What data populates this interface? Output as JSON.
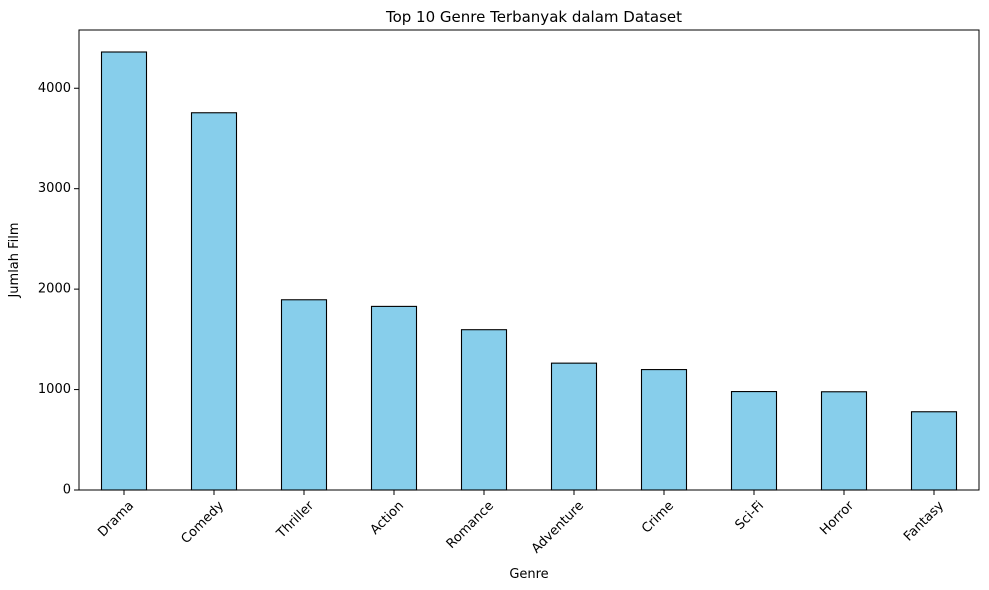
{
  "chart_data": {
    "type": "bar",
    "title": "Top 10 Genre Terbanyak dalam Dataset",
    "xlabel": "Genre",
    "ylabel": "Jumlah Film",
    "categories": [
      "Drama",
      "Comedy",
      "Thriller",
      "Action",
      "Romance",
      "Adventure",
      "Crime",
      "Sci-Fi",
      "Horror",
      "Fantasy"
    ],
    "values": [
      4361,
      3756,
      1894,
      1828,
      1596,
      1263,
      1199,
      980,
      978,
      779
    ],
    "ylim": [
      0,
      4580
    ],
    "yticks": [
      0,
      1000,
      2000,
      3000,
      4000
    ],
    "bar_color": "#87CEEB",
    "edge_color": "#000000",
    "grid": false,
    "legend": "none"
  }
}
